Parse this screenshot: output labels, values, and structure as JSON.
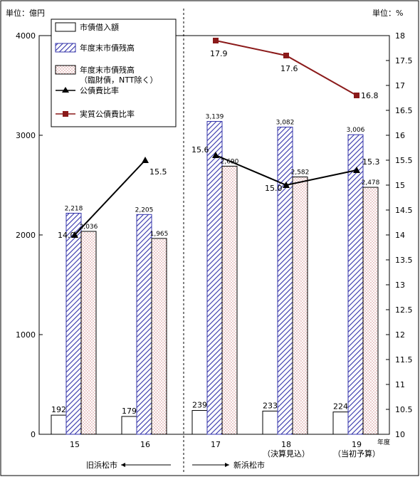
{
  "chart_data": {
    "type": "bar",
    "units": {
      "left": "単位：億円",
      "right": "単位：%"
    },
    "categories": [
      "15",
      "16",
      "17",
      "18",
      "19"
    ],
    "category_sublabels": [
      "",
      "",
      "",
      "（決算見込）",
      "（当初予算）"
    ],
    "x_unit": "年度",
    "yleft_ticks": [
      "0",
      "1000",
      "2000",
      "3000",
      "4000"
    ],
    "yleft_lim": [
      0,
      4000
    ],
    "yright_ticks": [
      "10",
      "10.5",
      "11",
      "11.5",
      "12",
      "12.5",
      "13",
      "13.5",
      "14",
      "14.5",
      "15",
      "15.5",
      "16",
      "16.5",
      "17",
      "17.5",
      "18"
    ],
    "yright_lim": [
      10,
      18
    ],
    "series": [
      {
        "name": "市債借入額",
        "kind": "bar",
        "pattern": "white",
        "values": [
          192,
          179,
          239,
          233,
          224
        ],
        "labels": [
          "192",
          "179",
          "239",
          "233",
          "224"
        ]
      },
      {
        "name": "年度末市債残高",
        "kind": "bar",
        "pattern": "hatch",
        "values": [
          2218,
          2205,
          3139,
          3082,
          3006
        ],
        "labels": [
          "2,218",
          "2,205",
          "3,139",
          "3,082",
          "3,006"
        ]
      },
      {
        "name": "年度末市債残高（臨財債，NTT除く）",
        "legend_lines": [
          "年度末市債残高",
          "（臨財債，NTT除く）"
        ],
        "kind": "bar",
        "pattern": "dots",
        "values": [
          2036,
          1965,
          2690,
          2582,
          2478
        ],
        "labels": [
          "2,036",
          "1,965",
          "2,690",
          "2,582",
          "2,478"
        ]
      },
      {
        "name": "公債費比率",
        "kind": "line",
        "color": "#000000",
        "marker": "triangle",
        "segments": [
          [
            0,
            1
          ],
          [
            2,
            3,
            4
          ]
        ],
        "values": [
          14.0,
          15.5,
          15.6,
          15.0,
          15.3
        ],
        "labels": [
          "14.0",
          "15.5",
          "15.6",
          "15.0",
          "15.3"
        ]
      },
      {
        "name": "実質公債費比率",
        "kind": "line",
        "color": "#8b1a1a",
        "marker": "square",
        "values": [
          null,
          null,
          17.9,
          17.6,
          16.8
        ],
        "labels": [
          "",
          "",
          "17.9",
          "17.6",
          "16.8"
        ]
      }
    ],
    "annotations": {
      "old": "旧浜松市",
      "new": "新浜松市"
    },
    "legend_placement": "top-left"
  }
}
